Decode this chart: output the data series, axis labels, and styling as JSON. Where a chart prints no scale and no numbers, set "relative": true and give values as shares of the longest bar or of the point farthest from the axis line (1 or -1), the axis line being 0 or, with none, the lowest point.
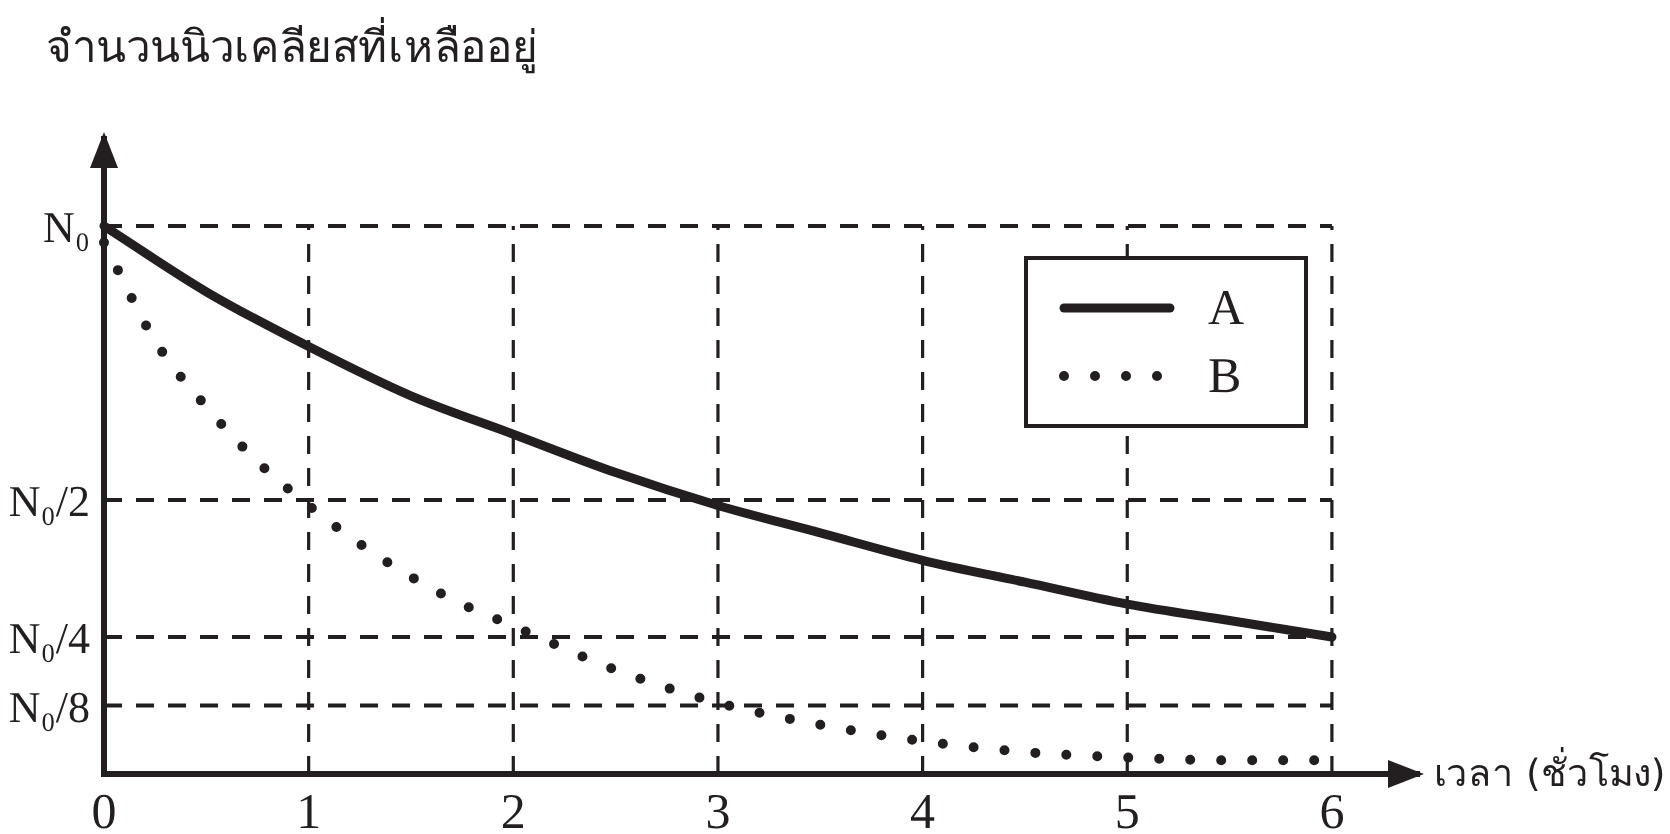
{
  "chart_data": {
    "type": "line",
    "relative": true,
    "xlabel": "เวลา (ชั่วโมง)",
    "ylabel": "จำนวนนิวเคลียสที่เหลืออยู่",
    "xlim": [
      0,
      6.45
    ],
    "xticks": [
      0,
      1,
      2,
      3,
      4,
      5,
      6
    ],
    "grid": "x",
    "legend": "top right",
    "marker": "none",
    "ref_lines": [
      {
        "axis": "y",
        "value": 1,
        "label": "N₀",
        "line_style": "dashed"
      },
      {
        "axis": "y",
        "value": 0.5,
        "label": "N₀/2",
        "line_style": "dashed"
      },
      {
        "axis": "y",
        "value": 0.25,
        "label": "N₀/4",
        "line_style": "dashed"
      },
      {
        "axis": "y",
        "value": 0.125,
        "label": "N₀/8",
        "line_style": "dashed"
      }
    ],
    "series": [
      {
        "name": "A",
        "color": "#231f20",
        "line_style": "solid",
        "x": [
          0,
          0.5,
          1,
          1.5,
          2,
          2.5,
          3,
          3.5,
          4,
          4.5,
          5,
          5.5,
          6
        ],
        "values": [
          1.0,
          0.88,
          0.78,
          0.69,
          0.62,
          0.55,
          0.49,
          0.44,
          0.39,
          0.35,
          0.31,
          0.28,
          0.25
        ]
      },
      {
        "name": "B",
        "color": "#231f20",
        "line_style": "dotted",
        "x": [
          0,
          0.25,
          0.5,
          0.75,
          1,
          1.25,
          1.5,
          1.75,
          2,
          2.5,
          3,
          3.5,
          4,
          4.5,
          5,
          5.5,
          6
        ],
        "values": [
          0.97,
          0.79,
          0.67,
          0.57,
          0.49,
          0.42,
          0.36,
          0.31,
          0.27,
          0.19,
          0.13,
          0.09,
          0.06,
          0.04,
          0.03,
          0.025,
          0.025
        ]
      }
    ]
  }
}
